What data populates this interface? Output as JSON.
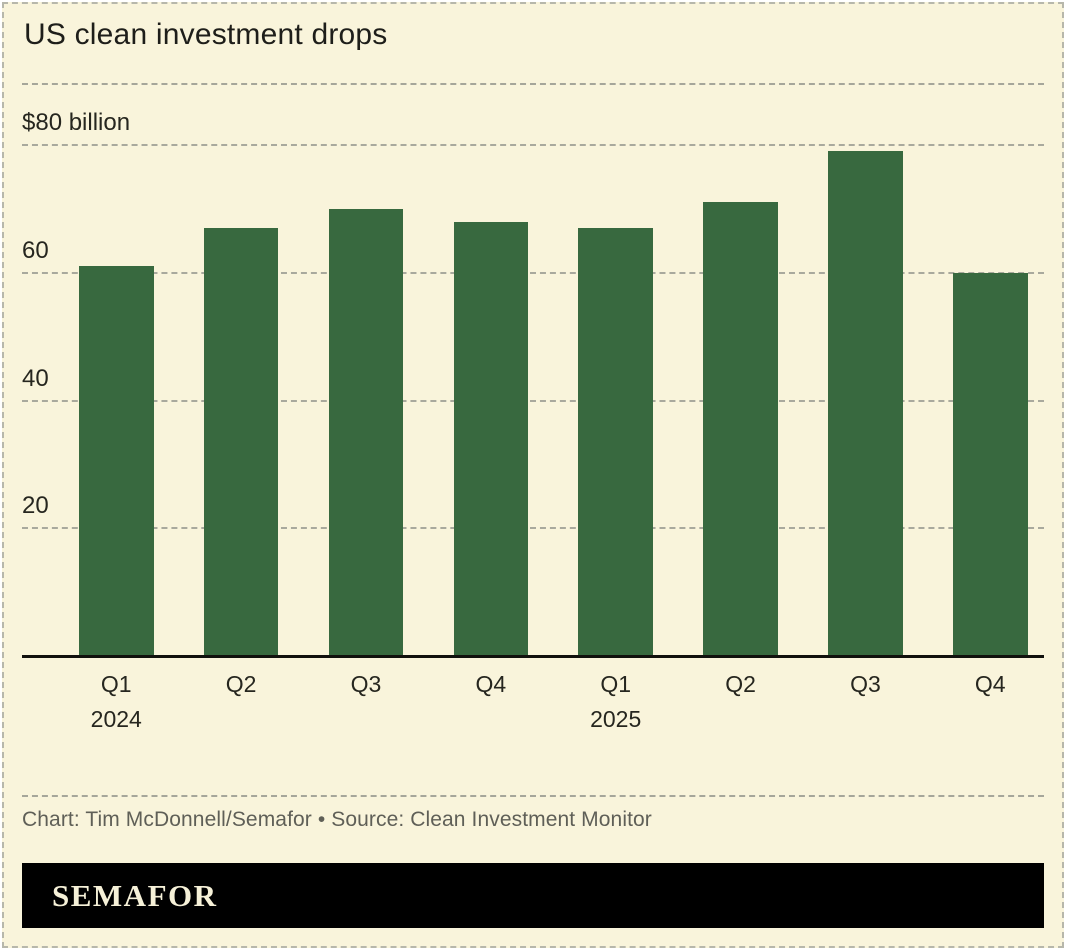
{
  "header": {
    "title": "US clean investment drops"
  },
  "chart_data": {
    "type": "bar",
    "title": "US clean investment drops",
    "unit": "billion US dollars",
    "categories": [
      "Q1 2024",
      "Q2 2024",
      "Q3 2024",
      "Q4 2024",
      "Q1 2025",
      "Q2 2025",
      "Q3 2025",
      "Q4 2025"
    ],
    "x_tick_labels": [
      {
        "quarter": "Q1",
        "year": "2024"
      },
      {
        "quarter": "Q2"
      },
      {
        "quarter": "Q3"
      },
      {
        "quarter": "Q4"
      },
      {
        "quarter": "Q1",
        "year": "2025"
      },
      {
        "quarter": "Q2"
      },
      {
        "quarter": "Q3"
      },
      {
        "quarter": "Q4"
      }
    ],
    "values": [
      61,
      67,
      70,
      68,
      67,
      71,
      79,
      60
    ],
    "ylim": [
      0,
      80
    ],
    "yticks": [
      {
        "value": 80,
        "label": "$80 billion"
      },
      {
        "value": 60,
        "label": "60"
      },
      {
        "value": 40,
        "label": "40"
      },
      {
        "value": 20,
        "label": "20"
      }
    ],
    "grid": "horizontal-dashed",
    "legend": "none",
    "bar_color": "#38693f"
  },
  "footer": {
    "credit": "Chart: Tim McDonnell/Semafor • Source: Clean Investment Monitor",
    "logo_text": "SEMAFOR"
  },
  "colors": {
    "background": "#f9f4db",
    "bar": "#38693f",
    "grid": "#a9a99d",
    "axis": "#11110d",
    "title_text": "#1e1e1a",
    "credit_text": "#5f5f57",
    "logo_bar": "#000000",
    "logo_text": "#f6f1d8"
  }
}
